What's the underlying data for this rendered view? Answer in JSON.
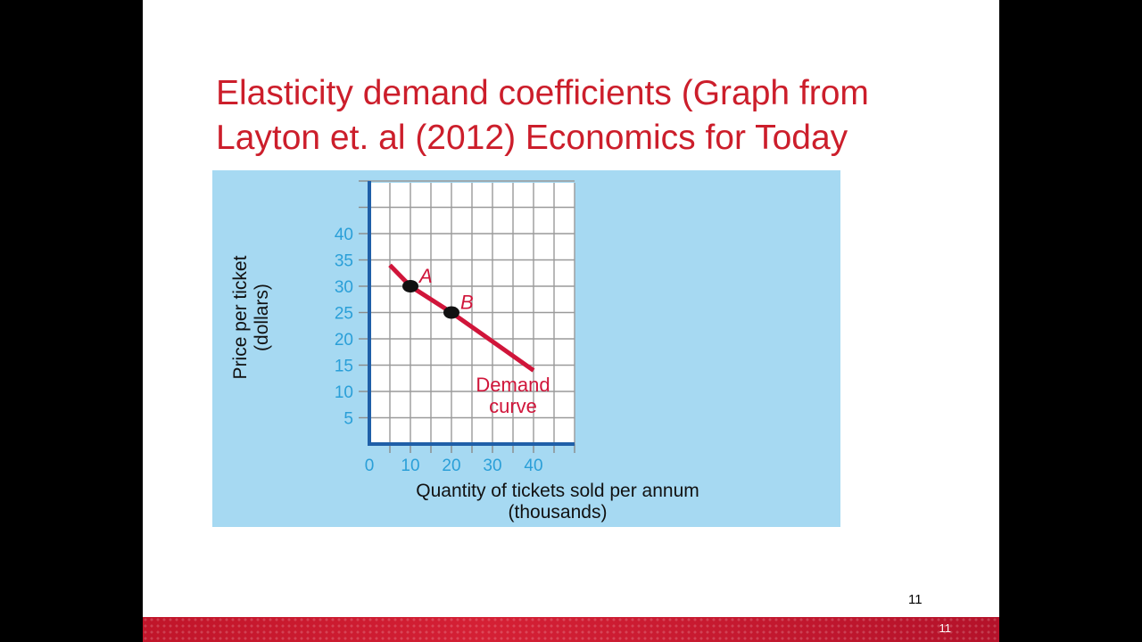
{
  "slide": {
    "title_lines": [
      "Elasticity demand coefficients (Graph from",
      "Layton et. al (2012) Economics for Today"
    ],
    "page_number": "11",
    "footer_number": "11"
  },
  "colors": {
    "title": "#cc1e2b",
    "panel_bg": "#a6d9f2",
    "axis": "#1f5fa8",
    "tick_label": "#2a9fd8",
    "demand_line": "#d0153a",
    "footer": "#c8172d"
  },
  "chart_data": {
    "type": "line",
    "xlabel_lines": [
      "Quantity of tickets sold per annum",
      "(thousands)"
    ],
    "ylabel_lines": [
      "Price per ticket",
      "(dollars)"
    ],
    "x_ticks": [
      0,
      10,
      20,
      30,
      40
    ],
    "y_ticks": [
      5,
      10,
      15,
      20,
      25,
      30,
      35,
      40
    ],
    "xlim": [
      0,
      50
    ],
    "ylim": [
      0,
      50
    ],
    "grid": true,
    "series": [
      {
        "x": [
          5,
          10,
          20,
          40
        ],
        "y": [
          34,
          30,
          25,
          14
        ]
      }
    ],
    "points": [
      {
        "label": "A",
        "x": 10,
        "y": 30
      },
      {
        "label": "B",
        "x": 20,
        "y": 25
      }
    ],
    "annotations": [
      {
        "text_lines": [
          "Demand",
          "curve"
        ],
        "x": 35,
        "y": 10
      }
    ]
  }
}
